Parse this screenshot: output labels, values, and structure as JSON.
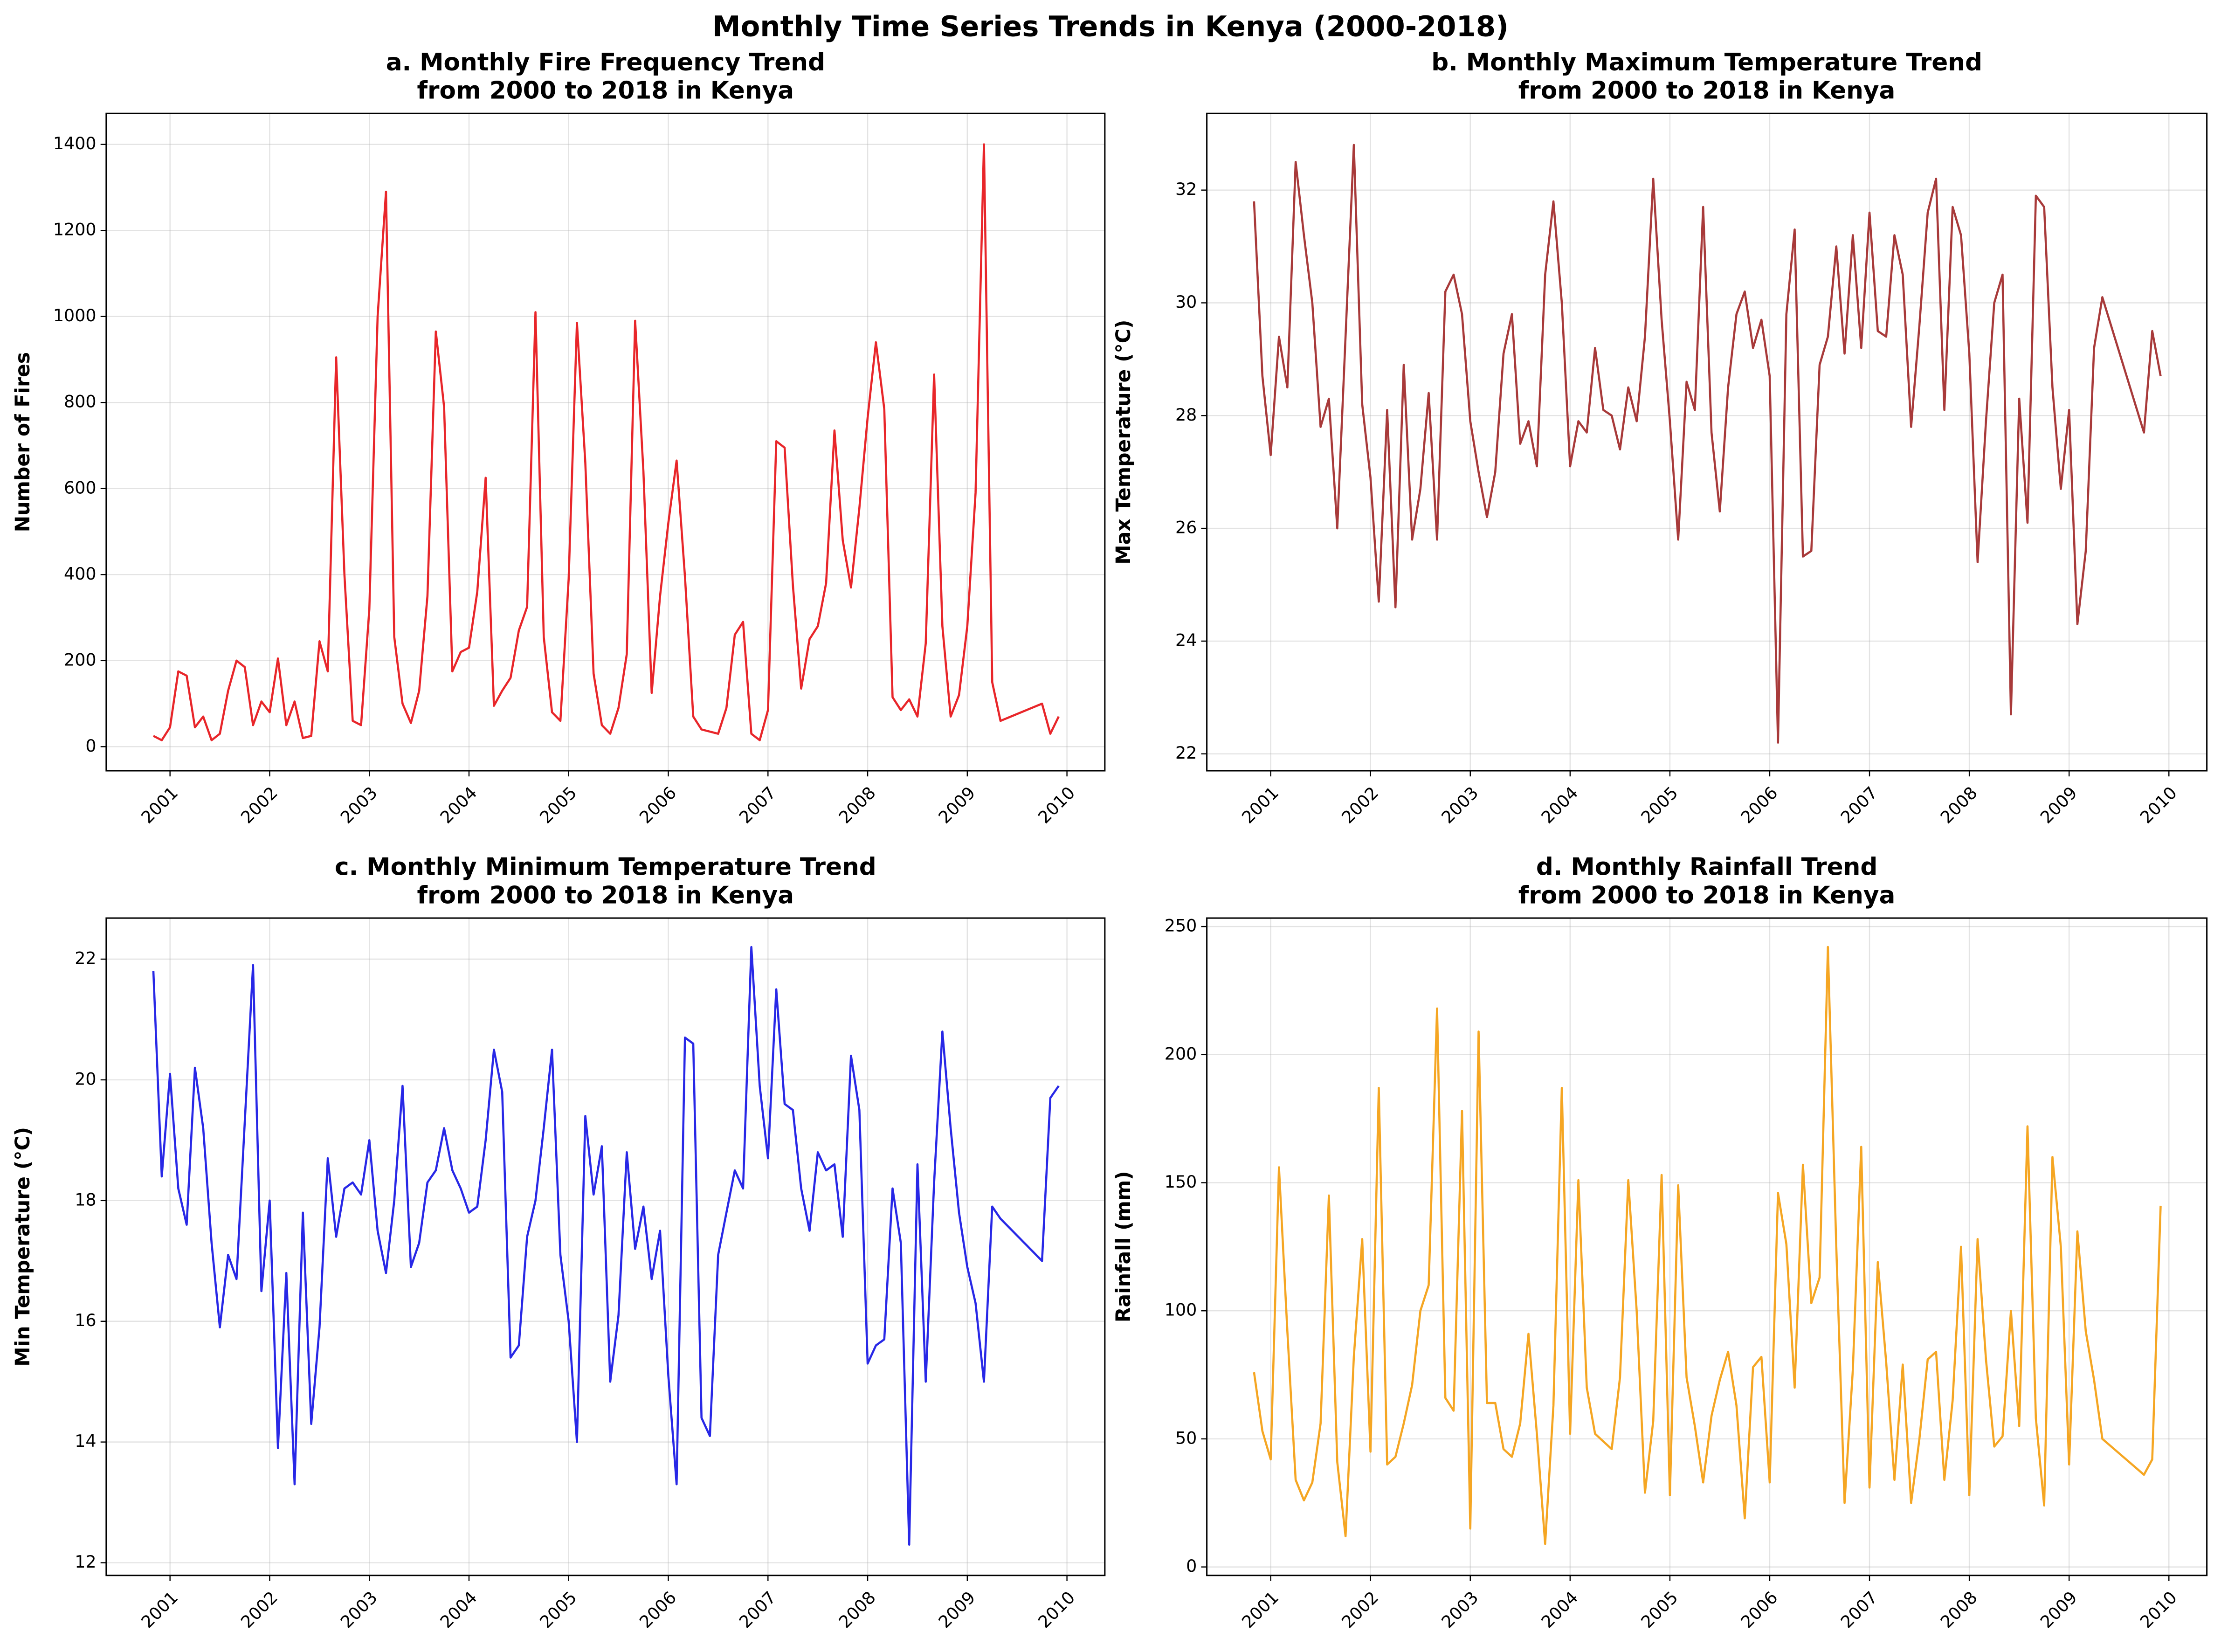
{
  "title": "Monthly Time Series Trends in Kenya (2000-2018)",
  "chart_data": [
    {
      "type": "line",
      "title": [
        "a. Monthly Fire Frequency Trend",
        "from 2000 to 2018 in Kenya"
      ],
      "ylabel": "Number of Fires",
      "color": "#e8262a",
      "grid": true,
      "xlim": [
        2000.36,
        2010.38
      ],
      "xticks": [
        2001,
        2002,
        2003,
        2004,
        2005,
        2006,
        2007,
        2008,
        2009,
        2010
      ],
      "ylim": [
        -56,
        1472
      ],
      "yticks": [
        0,
        200,
        400,
        600,
        800,
        1000,
        1200,
        1400
      ],
      "x": [
        2000.833,
        2000.917,
        2001,
        2001.083,
        2001.167,
        2001.25,
        2001.333,
        2001.417,
        2001.5,
        2001.583,
        2001.667,
        2001.75,
        2001.833,
        2001.917,
        2002,
        2002.083,
        2002.167,
        2002.25,
        2002.333,
        2002.417,
        2002.5,
        2002.583,
        2002.667,
        2002.75,
        2002.833,
        2002.917,
        2003,
        2003.083,
        2003.167,
        2003.25,
        2003.333,
        2003.417,
        2003.5,
        2003.583,
        2003.667,
        2003.75,
        2003.833,
        2003.917,
        2004,
        2004.083,
        2004.167,
        2004.25,
        2004.333,
        2004.417,
        2004.5,
        2004.583,
        2004.667,
        2004.75,
        2004.833,
        2004.917,
        2005,
        2005.083,
        2005.167,
        2005.25,
        2005.333,
        2005.417,
        2005.5,
        2005.583,
        2005.667,
        2005.75,
        2005.833,
        2005.917,
        2006,
        2006.083,
        2006.167,
        2006.25,
        2006.333,
        2006.417,
        2006.5,
        2006.583,
        2006.667,
        2006.75,
        2006.833,
        2006.917,
        2007,
        2007.083,
        2007.167,
        2007.25,
        2007.333,
        2007.417,
        2007.5,
        2007.583,
        2007.667,
        2007.75,
        2007.833,
        2007.917,
        2008,
        2008.083,
        2008.167,
        2008.25,
        2008.333,
        2008.417,
        2008.5,
        2008.583,
        2008.667,
        2008.75,
        2008.833,
        2008.917,
        2009,
        2009.083,
        2009.167,
        2009.25,
        2009.333,
        2009.75,
        2009.833,
        2009.917
      ],
      "values": [
        25,
        15,
        45,
        175,
        165,
        45,
        70,
        15,
        30,
        130,
        200,
        185,
        50,
        105,
        80,
        205,
        50,
        105,
        20,
        25,
        245,
        175,
        905,
        400,
        60,
        50,
        320,
        1000,
        1290,
        255,
        100,
        55,
        130,
        350,
        965,
        790,
        175,
        220,
        230,
        360,
        625,
        95,
        130,
        160,
        270,
        325,
        1010,
        255,
        80,
        60,
        390,
        985,
        660,
        170,
        50,
        30,
        90,
        215,
        990,
        640,
        125,
        350,
        520,
        665,
        395,
        70,
        40,
        35,
        30,
        90,
        260,
        290,
        30,
        15,
        85,
        710,
        695,
        375,
        135,
        250,
        280,
        380,
        735,
        480,
        370,
        555,
        765,
        940,
        785,
        115,
        85,
        110,
        70,
        240,
        865,
        280,
        70,
        120,
        280,
        590,
        1400,
        150,
        60,
        100,
        30,
        70
      ]
    },
    {
      "type": "line",
      "title": [
        "b. Monthly Maximum Temperature Trend",
        "from 2000 to 2018 in Kenya"
      ],
      "ylabel": "Max Temperature (°C)",
      "color": "#a83a3a",
      "grid": true,
      "xlim": [
        2000.36,
        2010.38
      ],
      "xticks": [
        2001,
        2002,
        2003,
        2004,
        2005,
        2006,
        2007,
        2008,
        2009,
        2010
      ],
      "ylim": [
        21.7,
        33.36
      ],
      "yticks": [
        22,
        24,
        26,
        28,
        30,
        32
      ],
      "x": [
        2000.833,
        2000.917,
        2001,
        2001.083,
        2001.167,
        2001.25,
        2001.333,
        2001.417,
        2001.5,
        2001.583,
        2001.667,
        2001.75,
        2001.833,
        2001.917,
        2002,
        2002.083,
        2002.167,
        2002.25,
        2002.333,
        2002.417,
        2002.5,
        2002.583,
        2002.667,
        2002.75,
        2002.833,
        2002.917,
        2003,
        2003.083,
        2003.167,
        2003.25,
        2003.333,
        2003.417,
        2003.5,
        2003.583,
        2003.667,
        2003.75,
        2003.833,
        2003.917,
        2004,
        2004.083,
        2004.167,
        2004.25,
        2004.333,
        2004.417,
        2004.5,
        2004.583,
        2004.667,
        2004.75,
        2004.833,
        2004.917,
        2005,
        2005.083,
        2005.167,
        2005.25,
        2005.333,
        2005.417,
        2005.5,
        2005.583,
        2005.667,
        2005.75,
        2005.833,
        2005.917,
        2006,
        2006.083,
        2006.167,
        2006.25,
        2006.333,
        2006.417,
        2006.5,
        2006.583,
        2006.667,
        2006.75,
        2006.833,
        2006.917,
        2007,
        2007.083,
        2007.167,
        2007.25,
        2007.333,
        2007.417,
        2007.5,
        2007.583,
        2007.667,
        2007.75,
        2007.833,
        2007.917,
        2008,
        2008.083,
        2008.167,
        2008.25,
        2008.333,
        2008.417,
        2008.5,
        2008.583,
        2008.667,
        2008.75,
        2008.833,
        2008.917,
        2009,
        2009.083,
        2009.167,
        2009.25,
        2009.333,
        2009.75,
        2009.833,
        2009.917
      ],
      "values": [
        31.8,
        28.7,
        27.3,
        29.4,
        28.5,
        32.5,
        31.2,
        30.0,
        27.8,
        28.3,
        26.0,
        29.4,
        32.8,
        28.2,
        26.9,
        24.7,
        28.1,
        24.6,
        28.9,
        25.8,
        26.7,
        28.4,
        25.8,
        30.2,
        30.5,
        29.8,
        27.9,
        27.0,
        26.2,
        27.0,
        29.1,
        29.8,
        27.5,
        27.9,
        27.1,
        30.5,
        31.8,
        30.0,
        27.1,
        27.9,
        27.7,
        29.2,
        28.1,
        28.0,
        27.4,
        28.5,
        27.9,
        29.4,
        32.2,
        29.7,
        27.9,
        25.8,
        28.6,
        28.1,
        31.7,
        27.7,
        26.3,
        28.5,
        29.8,
        30.2,
        29.2,
        29.7,
        28.7,
        22.2,
        29.8,
        31.3,
        25.5,
        25.6,
        28.9,
        29.4,
        31.0,
        29.1,
        31.2,
        29.2,
        31.6,
        29.5,
        29.4,
        31.2,
        30.5,
        27.8,
        29.6,
        31.6,
        32.2,
        28.1,
        31.7,
        31.2,
        29.1,
        25.4,
        27.9,
        30.0,
        30.5,
        22.7,
        28.3,
        26.1,
        31.9,
        31.7,
        28.5,
        26.7,
        28.1,
        24.3,
        25.6,
        29.2,
        30.1,
        27.7,
        29.5,
        28.7
      ]
    },
    {
      "type": "line",
      "title": [
        "c. Monthly Minimum Temperature Trend",
        "from 2000 to 2018 in Kenya"
      ],
      "ylabel": "Min Temperature (°C)",
      "color": "#2828e6",
      "grid": true,
      "xlim": [
        2000.36,
        2010.38
      ],
      "xticks": [
        2001,
        2002,
        2003,
        2004,
        2005,
        2006,
        2007,
        2008,
        2009,
        2010
      ],
      "ylim": [
        11.79,
        22.68
      ],
      "yticks": [
        12,
        14,
        16,
        18,
        20,
        22
      ],
      "x": [
        2000.833,
        2000.917,
        2001,
        2001.083,
        2001.167,
        2001.25,
        2001.333,
        2001.417,
        2001.5,
        2001.583,
        2001.667,
        2001.75,
        2001.833,
        2001.917,
        2002,
        2002.083,
        2002.167,
        2002.25,
        2002.333,
        2002.417,
        2002.5,
        2002.583,
        2002.667,
        2002.75,
        2002.833,
        2002.917,
        2003,
        2003.083,
        2003.167,
        2003.25,
        2003.333,
        2003.417,
        2003.5,
        2003.583,
        2003.667,
        2003.75,
        2003.833,
        2003.917,
        2004,
        2004.083,
        2004.167,
        2004.25,
        2004.333,
        2004.417,
        2004.5,
        2004.583,
        2004.667,
        2004.75,
        2004.833,
        2004.917,
        2005,
        2005.083,
        2005.167,
        2005.25,
        2005.333,
        2005.417,
        2005.5,
        2005.583,
        2005.667,
        2005.75,
        2005.833,
        2005.917,
        2006,
        2006.083,
        2006.167,
        2006.25,
        2006.333,
        2006.417,
        2006.5,
        2006.583,
        2006.667,
        2006.75,
        2006.833,
        2006.917,
        2007,
        2007.083,
        2007.167,
        2007.25,
        2007.333,
        2007.417,
        2007.5,
        2007.583,
        2007.667,
        2007.75,
        2007.833,
        2007.917,
        2008,
        2008.083,
        2008.167,
        2008.25,
        2008.333,
        2008.417,
        2008.5,
        2008.583,
        2008.667,
        2008.75,
        2008.833,
        2008.917,
        2009,
        2009.083,
        2009.167,
        2009.25,
        2009.333,
        2009.75,
        2009.833,
        2009.917
      ],
      "values": [
        21.8,
        18.4,
        20.1,
        18.2,
        17.6,
        20.2,
        19.2,
        17.3,
        15.9,
        17.1,
        16.7,
        19.3,
        21.9,
        16.5,
        18.0,
        13.9,
        16.8,
        13.3,
        17.8,
        14.3,
        15.9,
        18.7,
        17.4,
        18.2,
        18.3,
        18.1,
        19.0,
        17.5,
        16.8,
        18.0,
        19.9,
        16.9,
        17.3,
        18.3,
        18.5,
        19.2,
        18.5,
        18.2,
        17.8,
        17.9,
        19.0,
        20.5,
        19.8,
        15.4,
        15.6,
        17.4,
        18.0,
        19.2,
        20.5,
        17.1,
        16.0,
        14.0,
        19.4,
        18.1,
        18.9,
        15.0,
        16.1,
        18.8,
        17.2,
        17.9,
        16.7,
        17.5,
        15.1,
        13.3,
        20.7,
        20.6,
        14.4,
        14.1,
        17.1,
        17.8,
        18.5,
        18.2,
        22.2,
        19.9,
        18.7,
        21.5,
        19.6,
        19.5,
        18.2,
        17.5,
        18.8,
        18.5,
        18.6,
        17.4,
        20.4,
        19.5,
        15.3,
        15.6,
        15.7,
        18.2,
        17.3,
        12.3,
        18.6,
        15.0,
        18.3,
        20.8,
        19.2,
        17.8,
        16.9,
        16.3,
        15.0,
        17.9,
        17.7,
        17.0,
        19.7,
        19.9
      ]
    },
    {
      "type": "line",
      "title": [
        "d. Monthly Rainfall Trend",
        "from 2000 to 2018 in Kenya"
      ],
      "ylabel": "Rainfall (mm)",
      "color": "#f5a623",
      "grid": true,
      "xlim": [
        2000.36,
        2010.38
      ],
      "xticks": [
        2001,
        2002,
        2003,
        2004,
        2005,
        2006,
        2007,
        2008,
        2009,
        2010
      ],
      "ylim": [
        -3.3,
        253.3
      ],
      "yticks": [
        0,
        50,
        100,
        150,
        200,
        250
      ],
      "x": [
        2000.833,
        2000.917,
        2001,
        2001.083,
        2001.167,
        2001.25,
        2001.333,
        2001.417,
        2001.5,
        2001.583,
        2001.667,
        2001.75,
        2001.833,
        2001.917,
        2002,
        2002.083,
        2002.167,
        2002.25,
        2002.333,
        2002.417,
        2002.5,
        2002.583,
        2002.667,
        2002.75,
        2002.833,
        2002.917,
        2003,
        2003.083,
        2003.167,
        2003.25,
        2003.333,
        2003.417,
        2003.5,
        2003.583,
        2003.667,
        2003.75,
        2003.833,
        2003.917,
        2004,
        2004.083,
        2004.167,
        2004.25,
        2004.333,
        2004.417,
        2004.5,
        2004.583,
        2004.667,
        2004.75,
        2004.833,
        2004.917,
        2005,
        2005.083,
        2005.167,
        2005.25,
        2005.333,
        2005.417,
        2005.5,
        2005.583,
        2005.667,
        2005.75,
        2005.833,
        2005.917,
        2006,
        2006.083,
        2006.167,
        2006.25,
        2006.333,
        2006.417,
        2006.5,
        2006.583,
        2006.667,
        2006.75,
        2006.833,
        2006.917,
        2007,
        2007.083,
        2007.167,
        2007.25,
        2007.333,
        2007.417,
        2007.5,
        2007.583,
        2007.667,
        2007.75,
        2007.833,
        2007.917,
        2008,
        2008.083,
        2008.167,
        2008.25,
        2008.333,
        2008.417,
        2008.5,
        2008.583,
        2008.667,
        2008.75,
        2008.833,
        2008.917,
        2009,
        2009.083,
        2009.167,
        2009.25,
        2009.333,
        2009.75,
        2009.833,
        2009.917
      ],
      "values": [
        76,
        53,
        42,
        156,
        92,
        34,
        26,
        33,
        56,
        145,
        41,
        12,
        82,
        128,
        45,
        187,
        40,
        43,
        56,
        71,
        100,
        110,
        218,
        66,
        61,
        178,
        15,
        209,
        64,
        64,
        46,
        43,
        56,
        91,
        52,
        9,
        63,
        187,
        52,
        151,
        70,
        52,
        49,
        46,
        74,
        151,
        100,
        29,
        57,
        153,
        28,
        149,
        74,
        55,
        33,
        59,
        73,
        84,
        63,
        19,
        78,
        82,
        33,
        146,
        126,
        70,
        157,
        103,
        113,
        242,
        125,
        25,
        77,
        164,
        31,
        119,
        80,
        34,
        79,
        25,
        50,
        81,
        84,
        34,
        65,
        125,
        28,
        128,
        81,
        47,
        51,
        100,
        55,
        172,
        58,
        24,
        160,
        125,
        40,
        131,
        92,
        73,
        50,
        36,
        42,
        141
      ]
    }
  ]
}
